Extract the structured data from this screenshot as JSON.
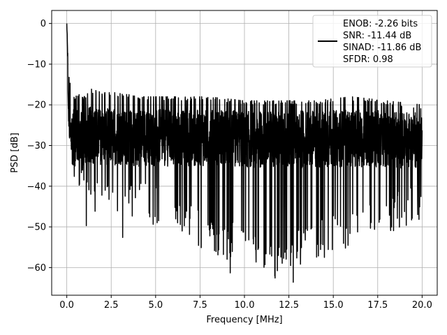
{
  "chart_data": {
    "type": "line",
    "title": "",
    "xlabel": "Frequency [MHz]",
    "ylabel": "PSD [dB]",
    "xlim": [
      -0.85,
      20.85
    ],
    "ylim": [
      -66.8,
      3.2
    ],
    "xticks": [
      0.0,
      2.5,
      5.0,
      7.5,
      10.0,
      12.5,
      15.0,
      17.5,
      20.0
    ],
    "xtick_labels": [
      "0.0",
      "2.5",
      "5.0",
      "7.5",
      "10.0",
      "12.5",
      "15.0",
      "17.5",
      "20.0"
    ],
    "yticks": [
      0,
      -10,
      -20,
      -30,
      -40,
      -50,
      -60
    ],
    "ytick_labels": [
      "0",
      "−10",
      "−20",
      "−30",
      "−40",
      "−50",
      "−60"
    ],
    "grid": true,
    "legend_position": "top-right",
    "series": [
      {
        "name": "ENOB: -2.26 bits\nSNR: -11.44 dB\nSINAD: -11.86 dB\nSFDR: 0.98",
        "color": "#000000",
        "description": "dense noise-like PSD; sharp peak near 0 dB at DC decaying to a noise floor around -30 dB (upper envelope about -20 dB, lower excursions to about -50..-63 dB) from 0 to 20 MHz",
        "x": [
          0.0,
          0.02,
          0.05,
          0.1,
          0.15,
          0.2,
          0.25,
          0.3,
          0.4,
          0.5,
          0.7,
          1.0,
          1.3,
          2.0,
          3.0,
          4.0,
          6.0,
          8.0,
          10.0,
          12.0,
          14.0,
          16.0,
          18.0,
          20.0
        ],
        "y_upper_envelope": [
          0.0,
          -3,
          -8,
          -12,
          -15,
          -16,
          -17,
          -18,
          -19,
          -19,
          -18,
          -19,
          -17,
          -18,
          -18,
          -19,
          -19,
          -19,
          -20,
          -20,
          -20,
          -19,
          -20,
          -21
        ],
        "y_lower_envelope": [
          -2,
          -6,
          -14,
          -24,
          -28,
          -30,
          -33,
          -35,
          -38,
          -40,
          -42,
          -44,
          -50,
          -48,
          -52,
          -48,
          -52,
          -56,
          -60,
          -63,
          -58,
          -55,
          -52,
          -48
        ],
        "notable_minima": [
          {
            "x": 9.2,
            "y": -61.3
          },
          {
            "x": 12.75,
            "y": -63.6
          },
          {
            "x": 14.5,
            "y": -57.5
          },
          {
            "x": 3.15,
            "y": -52.6
          },
          {
            "x": 1.1,
            "y": -49.7
          }
        ]
      }
    ],
    "legend_lines": [
      "ENOB: -2.26 bits",
      "SNR: -11.44 dB",
      "SINAD: -11.86 dB",
      "SFDR: 0.98"
    ]
  }
}
